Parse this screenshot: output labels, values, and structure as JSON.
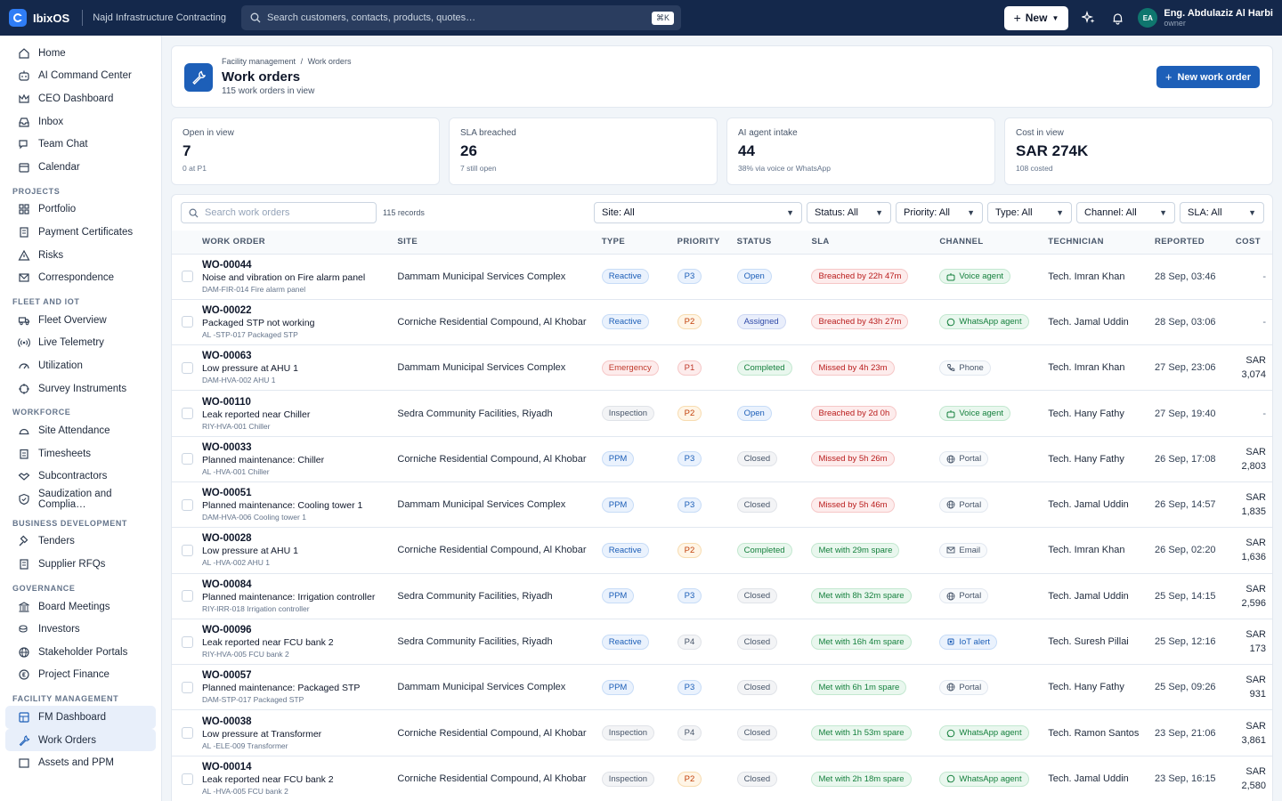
{
  "app": {
    "brand": "IbixOS",
    "org": "Najd Infrastructure Contracting",
    "search_placeholder": "Search customers, contacts, products, quotes…",
    "search_shortcut": "⌘K",
    "new_label": "New",
    "user_initials": "EA",
    "user_name": "Eng. Abdulaziz Al Harbi",
    "user_role": "owner"
  },
  "sidebar": {
    "top": [
      "Home",
      "AI Command Center",
      "CEO Dashboard",
      "Inbox",
      "Team Chat",
      "Calendar"
    ],
    "sections": [
      {
        "title": "PROJECTS",
        "items": [
          "Portfolio",
          "Payment Certificates",
          "Risks",
          "Correspondence"
        ]
      },
      {
        "title": "FLEET AND IOT",
        "items": [
          "Fleet Overview",
          "Live Telemetry",
          "Utilization",
          "Survey Instruments"
        ]
      },
      {
        "title": "WORKFORCE",
        "items": [
          "Site Attendance",
          "Timesheets",
          "Subcontractors",
          "Saudization and Complia…"
        ]
      },
      {
        "title": "BUSINESS DEVELOPMENT",
        "items": [
          "Tenders",
          "Supplier RFQs"
        ]
      },
      {
        "title": "GOVERNANCE",
        "items": [
          "Board Meetings",
          "Investors",
          "Stakeholder Portals",
          "Project Finance"
        ]
      },
      {
        "title": "FACILITY MANAGEMENT",
        "items": [
          "FM Dashboard",
          "Work Orders",
          "Assets and PPM"
        ]
      }
    ]
  },
  "header": {
    "breadcrumb_parent": "Facility management",
    "breadcrumb_sep": "/",
    "breadcrumb_current": "Work orders",
    "title": "Work orders",
    "subtitle": "115 work orders in view",
    "new_button": "New work order"
  },
  "kpis": [
    {
      "label": "Open in view",
      "value": "7",
      "sub": "0 at P1"
    },
    {
      "label": "SLA breached",
      "value": "26",
      "sub": "7 still open"
    },
    {
      "label": "AI agent intake",
      "value": "44",
      "sub": "38% via voice or WhatsApp"
    },
    {
      "label": "Cost in view",
      "value": "SAR 274K",
      "sub": "108 costed"
    }
  ],
  "filters": {
    "search_placeholder": "Search work orders",
    "records": "115 records",
    "site": "Site: All",
    "status": "Status: All",
    "priority": "Priority: All",
    "type": "Type: All",
    "channel": "Channel: All",
    "sla": "SLA: All"
  },
  "columns": {
    "work_order": "WORK ORDER",
    "site": "SITE",
    "type": "TYPE",
    "priority": "PRIORITY",
    "status": "STATUS",
    "sla": "SLA",
    "channel": "CHANNEL",
    "technician": "TECHNICIAN",
    "reported": "REPORTED",
    "cost": "COST"
  },
  "rows": [
    {
      "id": "WO-00044",
      "title": "Noise and vibration on Fire alarm panel",
      "asset": "DAM-FIR-014 Fire alarm panel",
      "site": "Dammam Municipal Services Complex",
      "type": "Reactive",
      "priority": "P3",
      "status": "Open",
      "sla": "Breached by 22h 47m",
      "sla_ok": false,
      "channel": "Voice agent",
      "channel_icon": "robot-icon",
      "technician": "Tech. Imran Khan",
      "reported": "28 Sep, 03:46",
      "cost": "-"
    },
    {
      "id": "WO-00022",
      "title": "Packaged STP not working",
      "asset": "AL -STP-017 Packaged STP",
      "site": "Corniche Residential Compound, Al Khobar",
      "type": "Reactive",
      "priority": "P2",
      "status": "Assigned",
      "sla": "Breached by 43h 27m",
      "sla_ok": false,
      "channel": "WhatsApp agent",
      "channel_icon": "chat-icon",
      "technician": "Tech. Jamal Uddin",
      "reported": "28 Sep, 03:06",
      "cost": "-"
    },
    {
      "id": "WO-00063",
      "title": "Low pressure at AHU 1",
      "asset": "DAM-HVA-002 AHU 1",
      "site": "Dammam Municipal Services Complex",
      "type": "Emergency",
      "priority": "P1",
      "status": "Completed",
      "sla": "Missed by 4h 23m",
      "sla_ok": false,
      "channel": "Phone",
      "channel_icon": "phone-icon",
      "technician": "Tech. Imran Khan",
      "reported": "27 Sep, 23:06",
      "cost": "SAR 3,074"
    },
    {
      "id": "WO-00110",
      "title": "Leak reported near Chiller",
      "asset": "RIY-HVA-001 Chiller",
      "site": "Sedra Community Facilities, Riyadh",
      "type": "Inspection",
      "priority": "P2",
      "status": "Open",
      "sla": "Breached by 2d 0h",
      "sla_ok": false,
      "channel": "Voice agent",
      "channel_icon": "robot-icon",
      "technician": "Tech. Hany Fathy",
      "reported": "27 Sep, 19:40",
      "cost": "-"
    },
    {
      "id": "WO-00033",
      "title": "Planned maintenance: Chiller",
      "asset": "AL -HVA-001 Chiller",
      "site": "Corniche Residential Compound, Al Khobar",
      "type": "PPM",
      "priority": "P3",
      "status": "Closed",
      "sla": "Missed by 5h 26m",
      "sla_ok": false,
      "channel": "Portal",
      "channel_icon": "globe-icon",
      "technician": "Tech. Hany Fathy",
      "reported": "26 Sep, 17:08",
      "cost": "SAR 2,803"
    },
    {
      "id": "WO-00051",
      "title": "Planned maintenance: Cooling tower 1",
      "asset": "DAM-HVA-006 Cooling tower 1",
      "site": "Dammam Municipal Services Complex",
      "type": "PPM",
      "priority": "P3",
      "status": "Closed",
      "sla": "Missed by 5h 46m",
      "sla_ok": false,
      "channel": "Portal",
      "channel_icon": "globe-icon",
      "technician": "Tech. Jamal Uddin",
      "reported": "26 Sep, 14:57",
      "cost": "SAR 1,835"
    },
    {
      "id": "WO-00028",
      "title": "Low pressure at AHU 1",
      "asset": "AL -HVA-002 AHU 1",
      "site": "Corniche Residential Compound, Al Khobar",
      "type": "Reactive",
      "priority": "P2",
      "status": "Completed",
      "sla": "Met with 29m spare",
      "sla_ok": true,
      "channel": "Email",
      "channel_icon": "mail-icon",
      "technician": "Tech. Imran Khan",
      "reported": "26 Sep, 02:20",
      "cost": "SAR 1,636"
    },
    {
      "id": "WO-00084",
      "title": "Planned maintenance: Irrigation controller",
      "asset": "RIY-IRR-018 Irrigation controller",
      "site": "Sedra Community Facilities, Riyadh",
      "type": "PPM",
      "priority": "P3",
      "status": "Closed",
      "sla": "Met with 8h 32m spare",
      "sla_ok": true,
      "channel": "Portal",
      "channel_icon": "globe-icon",
      "technician": "Tech. Jamal Uddin",
      "reported": "25 Sep, 14:15",
      "cost": "SAR 2,596"
    },
    {
      "id": "WO-00096",
      "title": "Leak reported near FCU bank 2",
      "asset": "RIY-HVA-005 FCU bank 2",
      "site": "Sedra Community Facilities, Riyadh",
      "type": "Reactive",
      "priority": "P4",
      "status": "Closed",
      "sla": "Met with 16h 4m spare",
      "sla_ok": true,
      "channel": "IoT alert",
      "channel_icon": "chip-icon",
      "technician": "Tech. Suresh Pillai",
      "reported": "25 Sep, 12:16",
      "cost": "SAR 173"
    },
    {
      "id": "WO-00057",
      "title": "Planned maintenance: Packaged STP",
      "asset": "DAM-STP-017 Packaged STP",
      "site": "Dammam Municipal Services Complex",
      "type": "PPM",
      "priority": "P3",
      "status": "Closed",
      "sla": "Met with 6h 1m spare",
      "sla_ok": true,
      "channel": "Portal",
      "channel_icon": "globe-icon",
      "technician": "Tech. Hany Fathy",
      "reported": "25 Sep, 09:26",
      "cost": "SAR 931"
    },
    {
      "id": "WO-00038",
      "title": "Low pressure at Transformer",
      "asset": "AL -ELE-009 Transformer",
      "site": "Corniche Residential Compound, Al Khobar",
      "type": "Inspection",
      "priority": "P4",
      "status": "Closed",
      "sla": "Met with 1h 53m spare",
      "sla_ok": true,
      "channel": "WhatsApp agent",
      "channel_icon": "chat-icon",
      "technician": "Tech. Ramon Santos",
      "reported": "23 Sep, 21:06",
      "cost": "SAR 3,861"
    },
    {
      "id": "WO-00014",
      "title": "Leak reported near FCU bank 2",
      "asset": "AL -HVA-005 FCU bank 2",
      "site": "Corniche Residential Compound, Al Khobar",
      "type": "Inspection",
      "priority": "P2",
      "status": "Closed",
      "sla": "Met with 2h 18m spare",
      "sla_ok": true,
      "channel": "WhatsApp agent",
      "channel_icon": "chat-icon",
      "technician": "Tech. Jamal Uddin",
      "reported": "23 Sep, 16:15",
      "cost": "SAR 2,580"
    }
  ]
}
